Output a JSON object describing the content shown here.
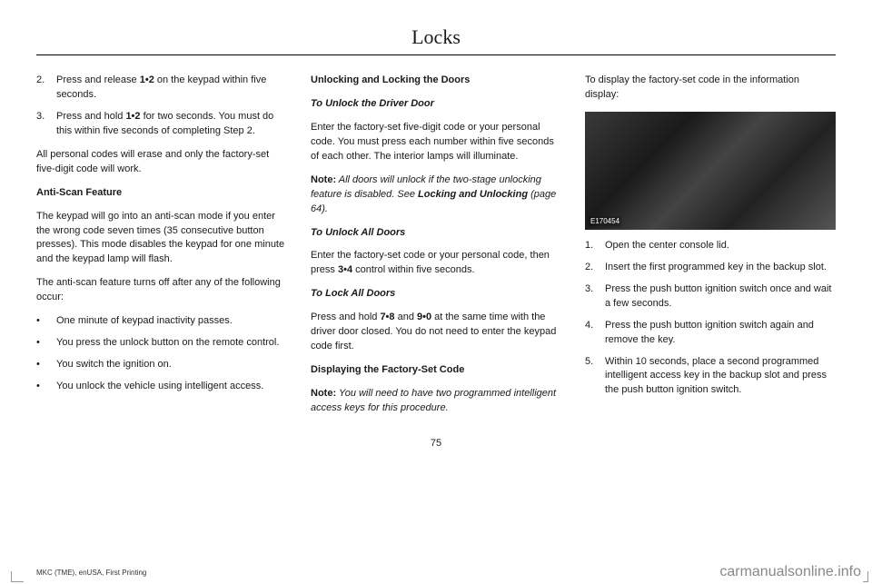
{
  "chapterTitle": "Locks",
  "pageNumber": "75",
  "footerLeft": "MKC (TME), enUSA, First Printing",
  "watermark": "carmanualsonline.info",
  "photoCaption": "E170454",
  "col1": {
    "step2_num": "2.",
    "step2_a": "Press and release ",
    "step2_b": "1•2",
    "step2_c": " on the keypad within five seconds.",
    "step3_num": "3.",
    "step3_a": "Press and hold ",
    "step3_b": "1•2",
    "step3_c": " for two seconds. You must do this within five seconds of completing Step 2.",
    "p1": "All personal codes will erase and only the factory-set five-digit code will work.",
    "h1": "Anti-Scan Feature",
    "p2": "The keypad will go into an anti-scan mode if you enter the wrong code seven times (35 consecutive button presses). This mode disables the keypad for one minute and the keypad lamp will flash.",
    "p3": "The anti-scan feature turns off after any of the following occur:",
    "b1": "One minute of keypad inactivity passes.",
    "b2": "You press the unlock button on the remote control.",
    "b3": "You switch the ignition on.",
    "b4": "You unlock the vehicle using intelligent access."
  },
  "col2": {
    "h1": "Unlocking and Locking the Doors",
    "h2": "To Unlock the Driver Door",
    "p1": "Enter the factory-set five-digit code or your personal code. You must press each number within five seconds of each other. The interior lamps will illuminate.",
    "note1_label": "Note:",
    "note1_a": " All doors will unlock if the two-stage unlocking feature is disabled.  See ",
    "note1_b": "Locking and Unlocking",
    "note1_c": " (page 64).",
    "h3": "To Unlock All Doors",
    "p2_a": "Enter the factory-set code or your personal code, then press ",
    "p2_b": "3•4",
    "p2_c": " control within five seconds.",
    "h4": "To Lock All Doors",
    "p3_a": "Press and hold ",
    "p3_b": "7•8",
    "p3_c": " and ",
    "p3_d": "9•0",
    "p3_e": " at the same time with the driver door closed. You do not need to enter the keypad code first.",
    "h5": "Displaying the Factory-Set Code",
    "note2_label": "Note:",
    "note2_a": " You will need to have two programmed intelligent access keys for this procedure."
  },
  "col3": {
    "p1": "To display the factory-set code in the information display:",
    "s1_num": "1.",
    "s1": "Open the center console lid.",
    "s2_num": "2.",
    "s2": "Insert the first programmed key in the backup slot.",
    "s3_num": "3.",
    "s3": "Press the push button ignition switch once and wait a few seconds.",
    "s4_num": "4.",
    "s4": "Press the push button ignition switch again and remove the key.",
    "s5_num": "5.",
    "s5": "Within 10 seconds, place a second programmed intelligent access key in the backup slot and press the push button ignition switch."
  }
}
